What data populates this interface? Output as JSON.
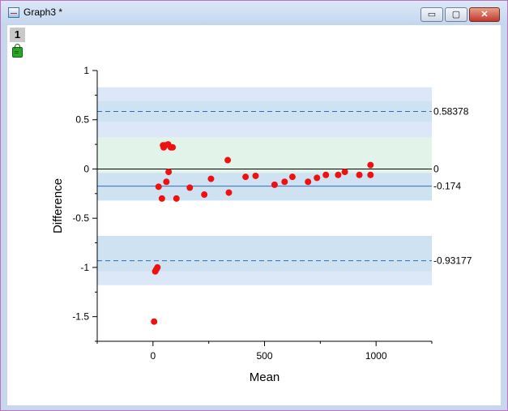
{
  "window": {
    "title": "Graph3 *",
    "layer_tab": "1"
  },
  "controls": {
    "minimize": "▭",
    "maximize": "▢",
    "close": "✕"
  },
  "chart_data": {
    "type": "scatter",
    "title": "",
    "xlabel": "Mean",
    "ylabel": "Difference",
    "xlim": [
      -250,
      1250
    ],
    "ylim": [
      -1.75,
      1
    ],
    "xticks": [
      0,
      500,
      1000
    ],
    "yticks": [
      1,
      0.5,
      0,
      -0.5,
      -1,
      -1.5
    ],
    "grid": false,
    "point_color": "#ee1111",
    "points": [
      [
        5,
        -1.55
      ],
      [
        10,
        -1.04
      ],
      [
        15,
        -1.02
      ],
      [
        20,
        -1.0
      ],
      [
        25,
        -0.18
      ],
      [
        40,
        -0.3
      ],
      [
        45,
        0.24
      ],
      [
        48,
        0.22
      ],
      [
        55,
        0.24
      ],
      [
        60,
        -0.13
      ],
      [
        68,
        0.25
      ],
      [
        70,
        -0.03
      ],
      [
        80,
        0.22
      ],
      [
        88,
        0.22
      ],
      [
        105,
        -0.3
      ],
      [
        165,
        -0.19
      ],
      [
        230,
        -0.26
      ],
      [
        260,
        -0.1
      ],
      [
        335,
        0.09
      ],
      [
        340,
        -0.24
      ],
      [
        415,
        -0.08
      ],
      [
        460,
        -0.07
      ],
      [
        545,
        -0.16
      ],
      [
        590,
        -0.13
      ],
      [
        625,
        -0.08
      ],
      [
        695,
        -0.13
      ],
      [
        735,
        -0.09
      ],
      [
        775,
        -0.06
      ],
      [
        830,
        -0.06
      ],
      [
        860,
        -0.03
      ],
      [
        925,
        -0.06
      ],
      [
        975,
        0.04
      ],
      [
        975,
        -0.06
      ]
    ],
    "reference_lines": [
      {
        "label": "0.58378",
        "value": 0.58378,
        "style": "dashed",
        "color": "#2f6db8"
      },
      {
        "label": "0",
        "value": 0,
        "style": "solid",
        "color": "#000000"
      },
      {
        "label": "-0.174",
        "value": -0.174,
        "style": "solid",
        "color": "#2f6db8"
      },
      {
        "label": "-0.93177",
        "value": -0.93177,
        "style": "dashed",
        "color": "#2f6db8"
      }
    ],
    "bands": [
      {
        "from": 0.32,
        "to": 0.83,
        "color": "#dce8f8"
      },
      {
        "from": 0.48,
        "to": 0.69,
        "color": "#cfe2f2"
      },
      {
        "from": -0.32,
        "to": 0.32,
        "color": "#e2f4ea"
      },
      {
        "from": -0.32,
        "to": -0.04,
        "color": "#cfe2f2"
      },
      {
        "from": -1.18,
        "to": -0.68,
        "color": "#dce8f8"
      },
      {
        "from": -1.04,
        "to": -0.68,
        "color": "#cfe2f2"
      }
    ],
    "band_x_range": [
      -250,
      1250
    ]
  }
}
